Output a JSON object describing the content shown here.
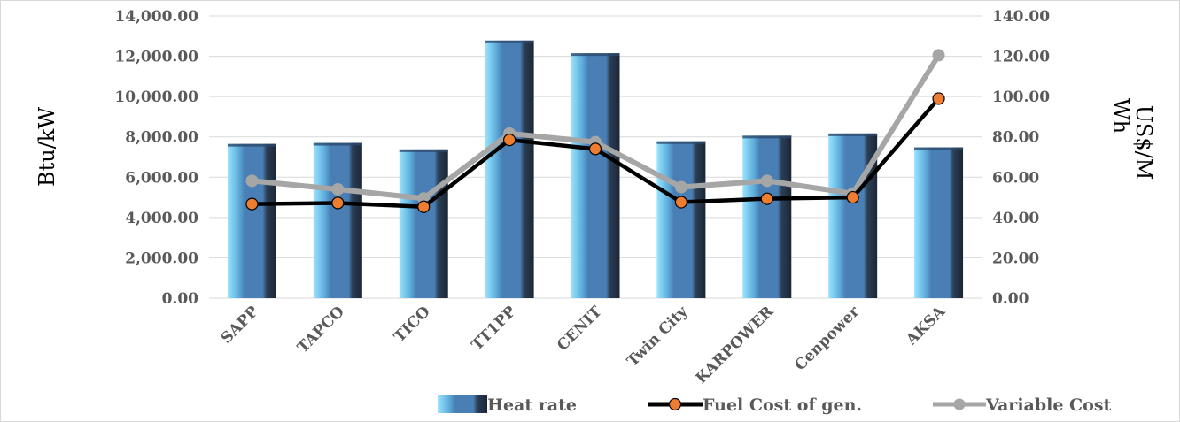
{
  "chart_data": {
    "type": "bar",
    "categories": [
      "SAPP",
      "TAPCO",
      "TICO",
      "TT1PP",
      "CENIT",
      "Twin City",
      "KARPOWER",
      "Cenpower",
      "AKSA"
    ],
    "series": [
      {
        "name": "Heat rate",
        "type": "bar",
        "axis": "left",
        "color": "#4a7fb5",
        "values": [
          7650,
          7700,
          7380,
          12780,
          12150,
          7780,
          8060,
          8170,
          7480
        ]
      },
      {
        "name": "Fuel Cost of gen.",
        "type": "line",
        "axis": "right",
        "color": "#000000",
        "marker_color": "#ed7d31",
        "values": [
          46.7,
          47.2,
          45.3,
          78.5,
          74.0,
          47.6,
          49.3,
          50.0,
          99.0
        ]
      },
      {
        "name": "Variable Cost",
        "type": "line",
        "axis": "right",
        "color": "#a6a6a6",
        "values": [
          58.2,
          54.0,
          49.5,
          81.7,
          77.4,
          55.1,
          58.2,
          51.9,
          120.5
        ]
      }
    ],
    "y_left": {
      "label": "Btu/kW",
      "min": 0,
      "max": 14000,
      "step": 2000,
      "tick_labels": [
        "0.00",
        "2,000.00",
        "4,000.00",
        "6,000.00",
        "8,000.00",
        "10,000.00",
        "12,000.00",
        "14,000.00"
      ]
    },
    "y_right": {
      "label_lines": [
        "US$/M",
        "Wh"
      ],
      "min": 0,
      "max": 140,
      "step": 20,
      "tick_labels": [
        "0.00",
        "20.00",
        "40.00",
        "60.00",
        "80.00",
        "100.00",
        "120.00",
        "140.00"
      ]
    },
    "grid": true,
    "legend_position": "bottom",
    "legend": [
      "Heat rate",
      "Fuel Cost of gen.",
      "Variable Cost"
    ]
  }
}
